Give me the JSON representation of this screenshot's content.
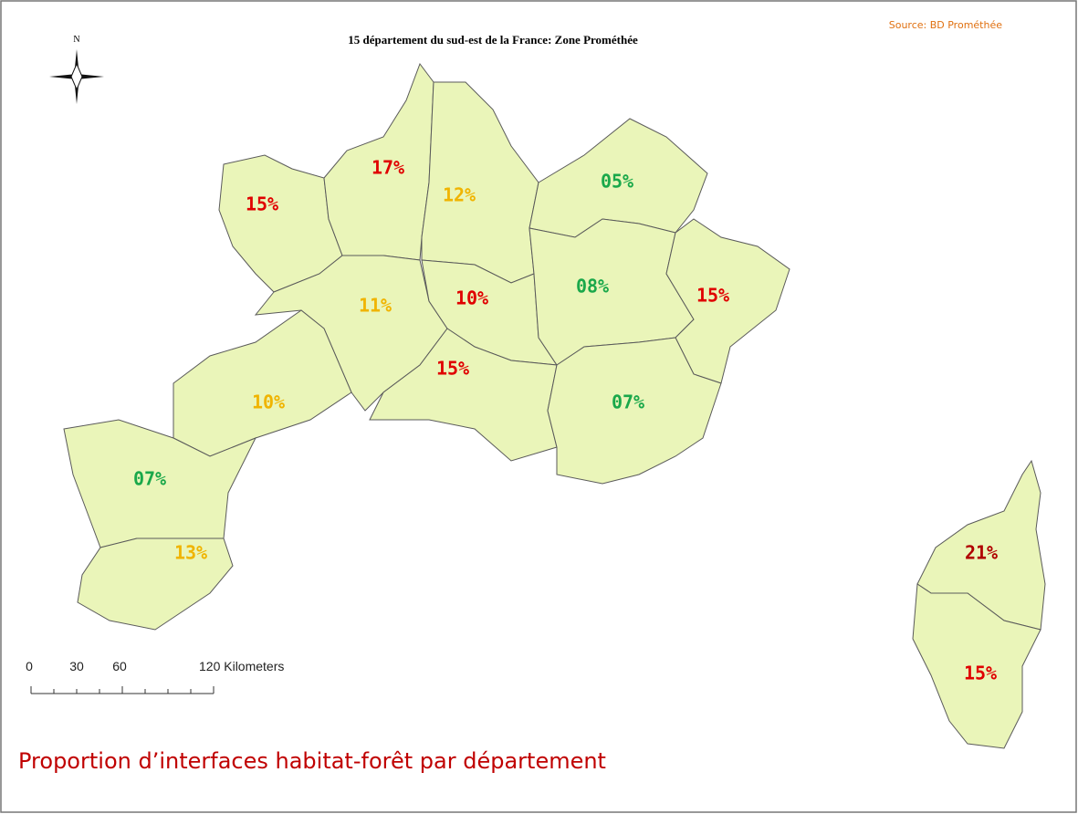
{
  "header": {
    "title": "15 département du sud-est de la France: Zone Prométhée",
    "source": "Source: BD Prométhée"
  },
  "compass": {
    "north": "N"
  },
  "scale_bar": {
    "ticks": [
      "0",
      "30",
      "60",
      "120 Kilometers"
    ]
  },
  "caption": "Proportion d’interfaces habitat-forêt par département",
  "departments": [
    {
      "label": "15%",
      "color": "#e00000"
    },
    {
      "label": "17%",
      "color": "#e00000"
    },
    {
      "label": "12%",
      "color": "#f0b400"
    },
    {
      "label": "05%",
      "color": "#1aa84a"
    },
    {
      "label": "11%",
      "color": "#f0b400"
    },
    {
      "label": "10%",
      "color": "#e00000"
    },
    {
      "label": "08%",
      "color": "#1aa84a"
    },
    {
      "label": "15%",
      "color": "#e00000"
    },
    {
      "label": "15%",
      "color": "#e00000"
    },
    {
      "label": "07%",
      "color": "#1aa84a"
    },
    {
      "label": "10%",
      "color": "#f0b400"
    },
    {
      "label": "07%",
      "color": "#1aa84a"
    },
    {
      "label": "13%",
      "color": "#f0b400"
    },
    {
      "label": "21%",
      "color": "#b00000"
    },
    {
      "label": "15%",
      "color": "#e00000"
    }
  ]
}
